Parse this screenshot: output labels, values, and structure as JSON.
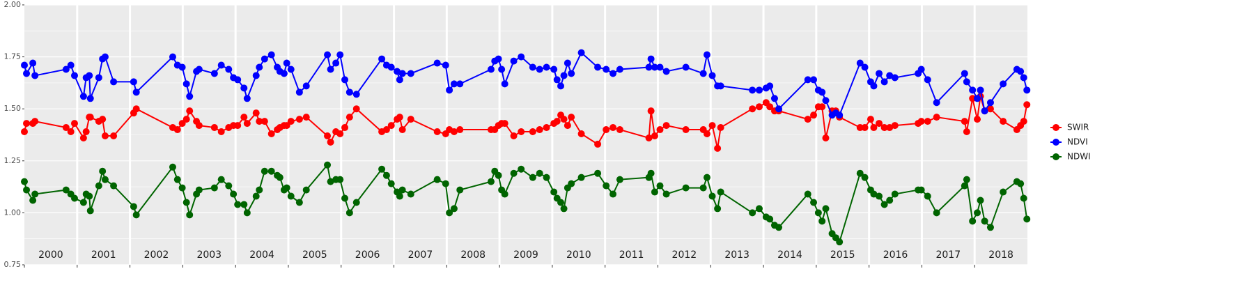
{
  "chart_data": {
    "type": "line",
    "legend": "right",
    "grid": true,
    "xlim": [
      2000,
      2019
    ],
    "ylim": [
      0.75,
      2.0
    ],
    "yticks": [
      {
        "value": 0.75,
        "label": "0.75"
      },
      {
        "value": 1.0,
        "label": "1.00"
      },
      {
        "value": 1.25,
        "label": "1.25"
      },
      {
        "value": 1.5,
        "label": "1.50"
      },
      {
        "value": 1.75,
        "label": "1.75"
      },
      {
        "value": 2.0,
        "label": "2.00"
      }
    ],
    "xticks": [
      {
        "value": 2000.5,
        "label": "2000"
      },
      {
        "value": 2001.5,
        "label": "2001"
      },
      {
        "value": 2002.5,
        "label": "2002"
      },
      {
        "value": 2003.5,
        "label": "2003"
      },
      {
        "value": 2004.5,
        "label": "2004"
      },
      {
        "value": 2005.5,
        "label": "2005"
      },
      {
        "value": 2006.5,
        "label": "2006"
      },
      {
        "value": 2007.5,
        "label": "2007"
      },
      {
        "value": 2008.5,
        "label": "2008"
      },
      {
        "value": 2009.5,
        "label": "2009"
      },
      {
        "value": 2010.5,
        "label": "2010"
      },
      {
        "value": 2011.5,
        "label": "2011"
      },
      {
        "value": 2012.5,
        "label": "2012"
      },
      {
        "value": 2013.5,
        "label": "2013"
      },
      {
        "value": 2014.5,
        "label": "2014"
      },
      {
        "value": 2015.5,
        "label": "2015"
      },
      {
        "value": 2016.5,
        "label": "2016"
      },
      {
        "value": 2017.5,
        "label": "2017"
      },
      {
        "value": 2018.5,
        "label": "2018"
      }
    ],
    "x": [
      2000.0,
      2000.04,
      2000.16,
      2000.2,
      2000.79,
      2000.88,
      2000.95,
      2001.12,
      2001.17,
      2001.23,
      2001.25,
      2001.41,
      2001.48,
      2001.53,
      2001.69,
      2002.07,
      2002.12,
      2002.81,
      2002.9,
      2002.99,
      2003.07,
      2003.13,
      2003.26,
      2003.31,
      2003.6,
      2003.73,
      2003.87,
      2003.96,
      2004.04,
      2004.16,
      2004.22,
      2004.39,
      2004.45,
      2004.55,
      2004.68,
      2004.79,
      2004.84,
      2004.92,
      2004.97,
      2005.05,
      2005.21,
      2005.34,
      2005.74,
      2005.8,
      2005.9,
      2005.98,
      2006.07,
      2006.16,
      2006.29,
      2006.77,
      2006.86,
      2006.95,
      2007.06,
      2007.11,
      2007.16,
      2007.32,
      2007.82,
      2007.98,
      2008.05,
      2008.14,
      2008.25,
      2008.84,
      2008.91,
      2008.98,
      2009.04,
      2009.1,
      2009.27,
      2009.41,
      2009.63,
      2009.76,
      2009.89,
      2010.03,
      2010.09,
      2010.16,
      2010.22,
      2010.29,
      2010.36,
      2010.55,
      2010.86,
      2011.02,
      2011.15,
      2011.28,
      2011.83,
      2011.87,
      2011.94,
      2012.04,
      2012.16,
      2012.53,
      2012.86,
      2012.93,
      2013.03,
      2013.13,
      2013.19,
      2013.79,
      2013.92,
      2014.05,
      2014.12,
      2014.21,
      2014.29,
      2014.84,
      2014.95,
      2015.04,
      2015.11,
      2015.18,
      2015.3,
      2015.37,
      2015.44,
      2015.83,
      2015.92,
      2016.03,
      2016.09,
      2016.19,
      2016.29,
      2016.39,
      2016.49,
      2016.93,
      2016.99,
      2017.11,
      2017.28,
      2017.81,
      2017.85,
      2017.96,
      2018.05,
      2018.11,
      2018.19,
      2018.3,
      2018.54,
      2018.8,
      2018.87,
      2018.93,
      2018.99
    ],
    "series": [
      {
        "name": "SWIR",
        "color": "#ff0000",
        "values": [
          1.39,
          1.43,
          1.43,
          1.44,
          1.41,
          1.39,
          1.43,
          1.36,
          1.39,
          1.46,
          1.46,
          1.44,
          1.45,
          1.37,
          1.37,
          1.48,
          1.5,
          1.41,
          1.4,
          1.43,
          1.45,
          1.49,
          1.44,
          1.42,
          1.41,
          1.39,
          1.41,
          1.42,
          1.42,
          1.46,
          1.43,
          1.48,
          1.44,
          1.44,
          1.38,
          1.4,
          1.41,
          1.42,
          1.42,
          1.44,
          1.45,
          1.46,
          1.37,
          1.34,
          1.39,
          1.38,
          1.41,
          1.46,
          1.5,
          1.39,
          1.4,
          1.42,
          1.45,
          1.46,
          1.4,
          1.45,
          1.39,
          1.38,
          1.4,
          1.39,
          1.4,
          1.4,
          1.4,
          1.42,
          1.43,
          1.43,
          1.37,
          1.39,
          1.39,
          1.4,
          1.41,
          1.43,
          1.44,
          1.47,
          1.45,
          1.42,
          1.46,
          1.38,
          1.33,
          1.4,
          1.41,
          1.4,
          1.36,
          1.49,
          1.37,
          1.4,
          1.42,
          1.4,
          1.4,
          1.38,
          1.42,
          1.31,
          1.41,
          1.5,
          1.51,
          1.53,
          1.51,
          1.49,
          1.49,
          1.45,
          1.47,
          1.51,
          1.51,
          1.36,
          1.49,
          1.49,
          1.46,
          1.41,
          1.41,
          1.45,
          1.41,
          1.43,
          1.41,
          1.41,
          1.42,
          1.43,
          1.44,
          1.44,
          1.46,
          1.44,
          1.39,
          1.55,
          1.45,
          1.56,
          1.49,
          1.5,
          1.44,
          1.4,
          1.42,
          1.44,
          1.52
        ]
      },
      {
        "name": "NDVI",
        "color": "#0000ff",
        "values": [
          1.71,
          1.67,
          1.72,
          1.66,
          1.69,
          1.71,
          1.66,
          1.56,
          1.65,
          1.66,
          1.55,
          1.65,
          1.74,
          1.75,
          1.63,
          1.63,
          1.58,
          1.75,
          1.71,
          1.7,
          1.62,
          1.56,
          1.68,
          1.69,
          1.67,
          1.71,
          1.69,
          1.65,
          1.64,
          1.6,
          1.55,
          1.66,
          1.7,
          1.74,
          1.76,
          1.7,
          1.68,
          1.67,
          1.72,
          1.69,
          1.58,
          1.61,
          1.76,
          1.69,
          1.72,
          1.76,
          1.64,
          1.58,
          1.57,
          1.74,
          1.71,
          1.7,
          1.68,
          1.64,
          1.67,
          1.67,
          1.72,
          1.71,
          1.59,
          1.62,
          1.62,
          1.69,
          1.73,
          1.74,
          1.69,
          1.62,
          1.73,
          1.75,
          1.7,
          1.69,
          1.7,
          1.69,
          1.64,
          1.61,
          1.66,
          1.72,
          1.67,
          1.77,
          1.7,
          1.69,
          1.67,
          1.69,
          1.7,
          1.74,
          1.7,
          1.7,
          1.68,
          1.7,
          1.67,
          1.76,
          1.66,
          1.61,
          1.61,
          1.59,
          1.59,
          1.6,
          1.61,
          1.55,
          1.5,
          1.64,
          1.64,
          1.59,
          1.58,
          1.54,
          1.47,
          1.48,
          1.47,
          1.72,
          1.7,
          1.63,
          1.61,
          1.67,
          1.63,
          1.66,
          1.65,
          1.67,
          1.69,
          1.64,
          1.53,
          1.67,
          1.63,
          1.59,
          1.55,
          1.59,
          1.49,
          1.53,
          1.62,
          1.69,
          1.68,
          1.65,
          1.59
        ]
      },
      {
        "name": "NDWI",
        "color": "#006400",
        "values": [
          1.15,
          1.11,
          1.06,
          1.09,
          1.11,
          1.09,
          1.07,
          1.05,
          1.09,
          1.08,
          1.01,
          1.13,
          1.2,
          1.16,
          1.13,
          1.03,
          0.99,
          1.22,
          1.16,
          1.12,
          1.05,
          0.99,
          1.09,
          1.11,
          1.12,
          1.16,
          1.13,
          1.09,
          1.04,
          1.04,
          1.0,
          1.08,
          1.11,
          1.2,
          1.2,
          1.18,
          1.17,
          1.11,
          1.12,
          1.08,
          1.05,
          1.11,
          1.23,
          1.15,
          1.16,
          1.16,
          1.07,
          1.0,
          1.05,
          1.21,
          1.18,
          1.14,
          1.1,
          1.08,
          1.11,
          1.09,
          1.16,
          1.14,
          1.0,
          1.02,
          1.11,
          1.15,
          1.2,
          1.18,
          1.11,
          1.09,
          1.19,
          1.21,
          1.17,
          1.19,
          1.17,
          1.1,
          1.07,
          1.05,
          1.02,
          1.12,
          1.14,
          1.17,
          1.19,
          1.13,
          1.09,
          1.16,
          1.17,
          1.19,
          1.1,
          1.13,
          1.09,
          1.12,
          1.12,
          1.17,
          1.08,
          1.02,
          1.1,
          1.0,
          1.02,
          0.98,
          0.97,
          0.94,
          0.93,
          1.09,
          1.05,
          1.0,
          0.96,
          1.02,
          0.9,
          0.88,
          0.86,
          1.19,
          1.17,
          1.11,
          1.09,
          1.08,
          1.04,
          1.06,
          1.09,
          1.11,
          1.11,
          1.08,
          1.0,
          1.13,
          1.16,
          0.96,
          1.0,
          1.06,
          0.96,
          0.93,
          1.1,
          1.15,
          1.14,
          1.07,
          0.97
        ]
      }
    ]
  }
}
